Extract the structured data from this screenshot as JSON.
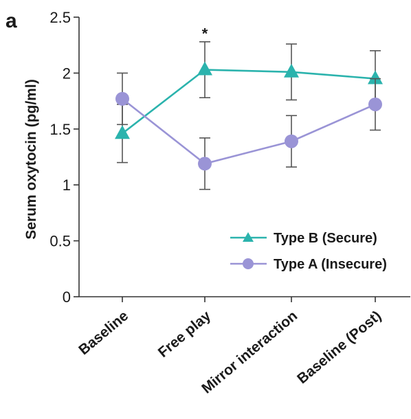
{
  "chart_data": {
    "type": "line",
    "panel_label": "a",
    "title": "",
    "xlabel": "",
    "ylabel": "Serum oxytocin (pg/ml)",
    "categories": [
      "Baseline",
      "Free play",
      "Mirror interaction",
      "Baseline (Post)"
    ],
    "ylim": [
      0,
      2.5
    ],
    "yticks": [
      0,
      0.5,
      1,
      1.5,
      2,
      2.5
    ],
    "ytick_labels": [
      "0",
      "0.5",
      "1",
      "1.5",
      "2",
      "2.5"
    ],
    "grid": false,
    "legend_position": "bottom-right",
    "series": [
      {
        "name": "Type B (Secure)",
        "marker": "triangle",
        "color": "#2bb3ad",
        "values": [
          1.46,
          2.03,
          2.01,
          1.95
        ],
        "error": [
          0.26,
          0.25,
          0.25,
          0.25
        ]
      },
      {
        "name": "Type A (Insecure)",
        "marker": "circle",
        "color": "#9a94d6",
        "values": [
          1.77,
          1.19,
          1.39,
          1.72
        ],
        "error": [
          0.23,
          0.23,
          0.23,
          0.23
        ]
      }
    ],
    "annotations": [
      {
        "text": "*",
        "category": "Free play",
        "y": 2.38
      }
    ]
  }
}
